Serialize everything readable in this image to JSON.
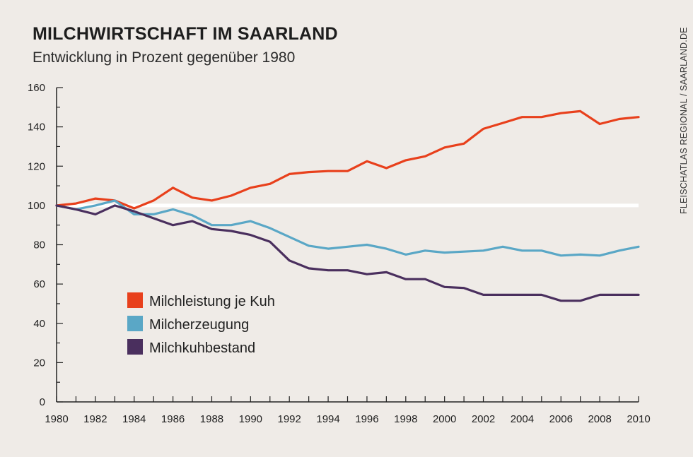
{
  "header": {
    "title": "MILCHWIRTSCHAFT IM SAARLAND",
    "subtitle": "Entwicklung in Prozent gegenüber 1980"
  },
  "source": "FLEISCHATLAS REGIONAL / SAARLAND.DE",
  "chart_data": {
    "type": "line",
    "title": "MILCHWIRTSCHAFT IM SAARLAND",
    "subtitle": "Entwicklung in Prozent gegenüber 1980",
    "xlabel": "",
    "ylabel": "",
    "xlim": [
      1980,
      2010
    ],
    "ylim": [
      0,
      160
    ],
    "y_ticks": [
      0,
      20,
      40,
      60,
      80,
      100,
      120,
      140,
      160
    ],
    "x_ticks": [
      1980,
      1982,
      1984,
      1986,
      1988,
      1990,
      1992,
      1994,
      1996,
      1998,
      2000,
      2002,
      2004,
      2006,
      2008,
      2010
    ],
    "reference_line": 100,
    "grid": false,
    "legend_position": "lower-left",
    "x": [
      1980,
      1981,
      1982,
      1983,
      1984,
      1985,
      1986,
      1987,
      1988,
      1989,
      1990,
      1991,
      1992,
      1993,
      1994,
      1995,
      1996,
      1997,
      1998,
      1999,
      2000,
      2001,
      2002,
      2003,
      2004,
      2005,
      2006,
      2007,
      2008,
      2009,
      2010
    ],
    "series": [
      {
        "name": "Milchleistung je Kuh",
        "color": "#e8401c",
        "values": [
          100,
          101,
          103.5,
          102.5,
          98.5,
          102.5,
          109,
          104,
          102.5,
          105,
          109,
          111,
          116,
          117,
          117.5,
          117.5,
          122.5,
          119,
          123,
          125,
          129.5,
          131.5,
          139,
          142,
          145,
          145,
          147,
          148,
          141.5,
          144,
          145
        ]
      },
      {
        "name": "Milcherzeugung",
        "color": "#5aa7c6",
        "values": [
          100,
          98,
          100,
          102.5,
          95.5,
          95.5,
          98,
          95,
          90,
          90,
          92,
          88.5,
          84,
          79.5,
          78,
          79,
          80,
          78,
          75,
          77,
          76,
          76.5,
          77,
          79,
          77,
          77,
          74.5,
          75,
          74.5,
          77,
          79
        ]
      },
      {
        "name": "Milchkuhbestand",
        "color": "#4a2f5e",
        "values": [
          100,
          98,
          95.5,
          100,
          97,
          93.5,
          90,
          92,
          88,
          87,
          85,
          81.5,
          72,
          68,
          67,
          67,
          65,
          66,
          62.5,
          62.5,
          58.5,
          58,
          54.5,
          54.5,
          54.5,
          54.5,
          51.5,
          51.5,
          54.5,
          54.5,
          54.5
        ]
      }
    ]
  }
}
